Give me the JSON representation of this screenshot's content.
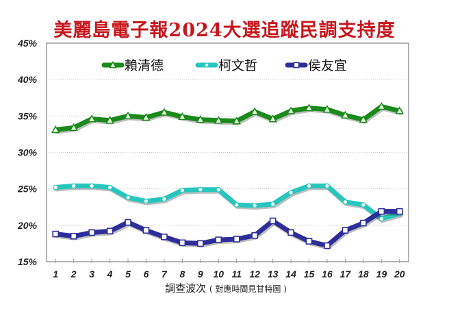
{
  "title": "美麗島電子報2024大選追蹤民調支持度",
  "chart_data": {
    "type": "line",
    "title": "美麗島電子報2024大選追蹤民調支持度",
    "xlabel": "調查波次",
    "xlabel_note": "( 對應時間見甘特圖 )",
    "ylabel": "",
    "x": [
      1,
      2,
      3,
      4,
      5,
      6,
      7,
      8,
      9,
      10,
      11,
      12,
      13,
      14,
      15,
      16,
      17,
      18,
      19,
      20
    ],
    "ylim": [
      15,
      45
    ],
    "yticks": [
      "15%",
      "20%",
      "25%",
      "30%",
      "35%",
      "40%",
      "45%"
    ],
    "grid": true,
    "legend_position": "top-inside",
    "series": [
      {
        "name": "賴清德",
        "color": "#1a8a1a",
        "marker": "triangle",
        "values": [
          33.1,
          33.4,
          34.6,
          34.4,
          35.0,
          34.8,
          35.5,
          34.9,
          34.5,
          34.4,
          34.3,
          35.6,
          34.6,
          35.7,
          36.1,
          35.9,
          35.1,
          34.5,
          36.3,
          35.7
        ]
      },
      {
        "name": "柯文哲",
        "color": "#26c6be",
        "marker": "circle",
        "values": [
          25.2,
          25.4,
          25.4,
          25.2,
          23.8,
          23.3,
          23.6,
          24.8,
          24.9,
          24.9,
          22.8,
          22.7,
          22.9,
          24.5,
          25.4,
          25.4,
          23.2,
          22.8,
          20.9,
          21.6
        ]
      },
      {
        "name": "侯友宜",
        "color": "#2e2e9a",
        "marker": "square",
        "values": [
          18.8,
          18.5,
          19.0,
          19.2,
          20.4,
          19.3,
          18.4,
          17.6,
          17.5,
          18.0,
          18.1,
          18.6,
          20.6,
          19.0,
          17.8,
          17.2,
          19.3,
          20.3,
          21.9,
          21.9
        ]
      }
    ]
  }
}
